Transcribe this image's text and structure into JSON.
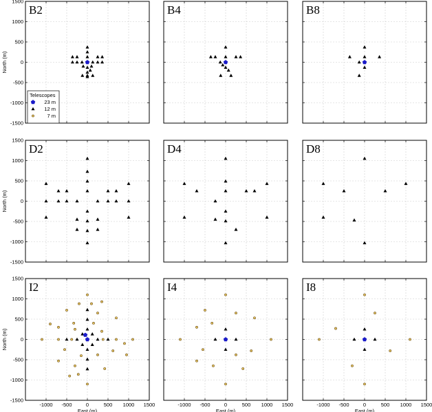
{
  "chart_data": {
    "type": "scatter",
    "xlabel": "East (m)",
    "ylabel": "North (m)",
    "xlim": [
      -1500,
      1500
    ],
    "ylim": [
      -1500,
      1500
    ],
    "xticks": [
      -1000,
      -500,
      0,
      500,
      1000,
      1500
    ],
    "yticks": [
      -1500,
      -1000,
      -500,
      0,
      500,
      1000,
      1500
    ],
    "grid": true,
    "colors": {
      "t23": "#1a1ac8",
      "t12": "#000000",
      "t7_fill": "#e0c060",
      "t7_edge": "#6b4c12"
    },
    "legend": {
      "title": "Telescopes",
      "placement": "inside panel B2, bottom-left",
      "entries": [
        {
          "key": "t23",
          "label": "23 m"
        },
        {
          "key": "t12",
          "label": "12 m"
        },
        {
          "key": "t7",
          "label": "7 m"
        }
      ]
    },
    "panels": [
      {
        "id": "B2",
        "label": "B2",
        "t23": [
          [
            0,
            0
          ]
        ],
        "t12": [
          [
            -360,
            130
          ],
          [
            -250,
            130
          ],
          [
            -360,
            0
          ],
          [
            -250,
            0
          ],
          [
            -130,
            0
          ],
          [
            130,
            0
          ],
          [
            250,
            0
          ],
          [
            360,
            0
          ],
          [
            0,
            370
          ],
          [
            0,
            250
          ],
          [
            0,
            130
          ],
          [
            0,
            -130
          ],
          [
            0,
            -250
          ],
          [
            0,
            -360
          ],
          [
            250,
            130
          ],
          [
            360,
            130
          ],
          [
            -100,
            -100
          ],
          [
            100,
            -100
          ],
          [
            -120,
            -330
          ],
          [
            0,
            -330
          ],
          [
            130,
            -330
          ],
          [
            70,
            -200
          ]
        ],
        "t7": []
      },
      {
        "id": "B4",
        "label": "B4",
        "t23": [
          [
            0,
            0
          ]
        ],
        "t12": [
          [
            -360,
            130
          ],
          [
            -250,
            130
          ],
          [
            -130,
            0
          ],
          [
            0,
            370
          ],
          [
            0,
            130
          ],
          [
            0,
            -130
          ],
          [
            250,
            130
          ],
          [
            360,
            130
          ],
          [
            -120,
            -330
          ],
          [
            130,
            -330
          ],
          [
            70,
            -200
          ],
          [
            -70,
            -70
          ]
        ],
        "t7": []
      },
      {
        "id": "B8",
        "label": "B8",
        "t23": [
          [
            0,
            0
          ]
        ],
        "t12": [
          [
            -360,
            130
          ],
          [
            -130,
            0
          ],
          [
            0,
            370
          ],
          [
            0,
            130
          ],
          [
            0,
            -130
          ],
          [
            360,
            130
          ],
          [
            -130,
            -330
          ]
        ],
        "t7": []
      },
      {
        "id": "D2",
        "label": "D2",
        "t23": [],
        "t12": [
          [
            -1000,
            430
          ],
          [
            -1000,
            0
          ],
          [
            -1000,
            -400
          ],
          [
            -700,
            250
          ],
          [
            -500,
            250
          ],
          [
            -700,
            0
          ],
          [
            -500,
            0
          ],
          [
            -250,
            0
          ],
          [
            0,
            1050
          ],
          [
            0,
            730
          ],
          [
            0,
            490
          ],
          [
            0,
            250
          ],
          [
            0,
            -250
          ],
          [
            0,
            -490
          ],
          [
            0,
            -730
          ],
          [
            0,
            -1030
          ],
          [
            -250,
            -450
          ],
          [
            -250,
            -700
          ],
          [
            250,
            -450
          ],
          [
            250,
            -700
          ],
          [
            250,
            0
          ],
          [
            500,
            0
          ],
          [
            700,
            0
          ],
          [
            500,
            250
          ],
          [
            700,
            250
          ],
          [
            1000,
            430
          ],
          [
            1000,
            0
          ],
          [
            1000,
            -400
          ]
        ],
        "t7": []
      },
      {
        "id": "D4",
        "label": "D4",
        "t23": [],
        "t12": [
          [
            -1000,
            430
          ],
          [
            -1000,
            -400
          ],
          [
            -700,
            250
          ],
          [
            -250,
            0
          ],
          [
            0,
            1050
          ],
          [
            0,
            490
          ],
          [
            0,
            250
          ],
          [
            0,
            -250
          ],
          [
            0,
            -490
          ],
          [
            0,
            -1030
          ],
          [
            -250,
            -450
          ],
          [
            250,
            -700
          ],
          [
            500,
            250
          ],
          [
            700,
            250
          ],
          [
            1000,
            430
          ],
          [
            1000,
            -400
          ]
        ],
        "t7": []
      },
      {
        "id": "D8",
        "label": "D8",
        "t23": [],
        "t12": [
          [
            -1000,
            430
          ],
          [
            -1000,
            -400
          ],
          [
            -500,
            250
          ],
          [
            0,
            1050
          ],
          [
            0,
            -1030
          ],
          [
            -250,
            -470
          ],
          [
            500,
            250
          ],
          [
            1000,
            430
          ]
        ],
        "t7": []
      },
      {
        "id": "I2",
        "label": "I2",
        "t23": [
          [
            0,
            0
          ],
          [
            -50,
            110
          ]
        ],
        "t12": [
          [
            0,
            250
          ],
          [
            0,
            490
          ],
          [
            0,
            730
          ],
          [
            0,
            -250
          ],
          [
            0,
            -490
          ],
          [
            0,
            -730
          ],
          [
            -250,
            0
          ],
          [
            -500,
            0
          ],
          [
            250,
            0
          ],
          [
            500,
            0
          ],
          [
            -120,
            130
          ],
          [
            120,
            130
          ],
          [
            -120,
            -130
          ],
          [
            120,
            -130
          ]
        ],
        "t7": [
          [
            -1100,
            0
          ],
          [
            1100,
            0
          ],
          [
            0,
            1100
          ],
          [
            0,
            -1100
          ],
          [
            -900,
            380
          ],
          [
            -500,
            720
          ],
          [
            -330,
            400
          ],
          [
            -200,
            880
          ],
          [
            100,
            880
          ],
          [
            350,
            930
          ],
          [
            700,
            530
          ],
          [
            250,
            650
          ],
          [
            -700,
            300
          ],
          [
            -700,
            -530
          ],
          [
            -430,
            -900
          ],
          [
            -300,
            -650
          ],
          [
            -220,
            -860
          ],
          [
            -700,
            0
          ],
          [
            -380,
            0
          ],
          [
            380,
            0
          ],
          [
            700,
            0
          ],
          [
            900,
            -100
          ],
          [
            950,
            -380
          ],
          [
            620,
            -280
          ],
          [
            420,
            -720
          ],
          [
            250,
            -380
          ],
          [
            -150,
            -400
          ],
          [
            150,
            400
          ],
          [
            -300,
            250
          ],
          [
            350,
            200
          ],
          [
            -550,
            -250
          ]
        ]
      },
      {
        "id": "I4",
        "label": "I4",
        "t23": [
          [
            0,
            0
          ]
        ],
        "t12": [
          [
            0,
            250
          ],
          [
            0,
            -250
          ],
          [
            -250,
            0
          ],
          [
            250,
            0
          ]
        ],
        "t7": [
          [
            -1100,
            0
          ],
          [
            1100,
            0
          ],
          [
            0,
            1100
          ],
          [
            0,
            -1100
          ],
          [
            -500,
            720
          ],
          [
            -330,
            400
          ],
          [
            250,
            650
          ],
          [
            700,
            530
          ],
          [
            -700,
            300
          ],
          [
            -700,
            -530
          ],
          [
            -300,
            -650
          ],
          [
            250,
            -380
          ],
          [
            420,
            -720
          ],
          [
            620,
            -280
          ],
          [
            -550,
            -250
          ]
        ]
      },
      {
        "id": "I8",
        "label": "I8",
        "t23": [
          [
            0,
            0
          ]
        ],
        "t12": [
          [
            0,
            250
          ],
          [
            0,
            -250
          ],
          [
            -250,
            0
          ],
          [
            250,
            0
          ]
        ],
        "t7": [
          [
            -1100,
            0
          ],
          [
            1100,
            0
          ],
          [
            0,
            1100
          ],
          [
            0,
            -1100
          ],
          [
            -700,
            270
          ],
          [
            250,
            650
          ],
          [
            -300,
            -650
          ],
          [
            620,
            -280
          ]
        ]
      }
    ]
  }
}
